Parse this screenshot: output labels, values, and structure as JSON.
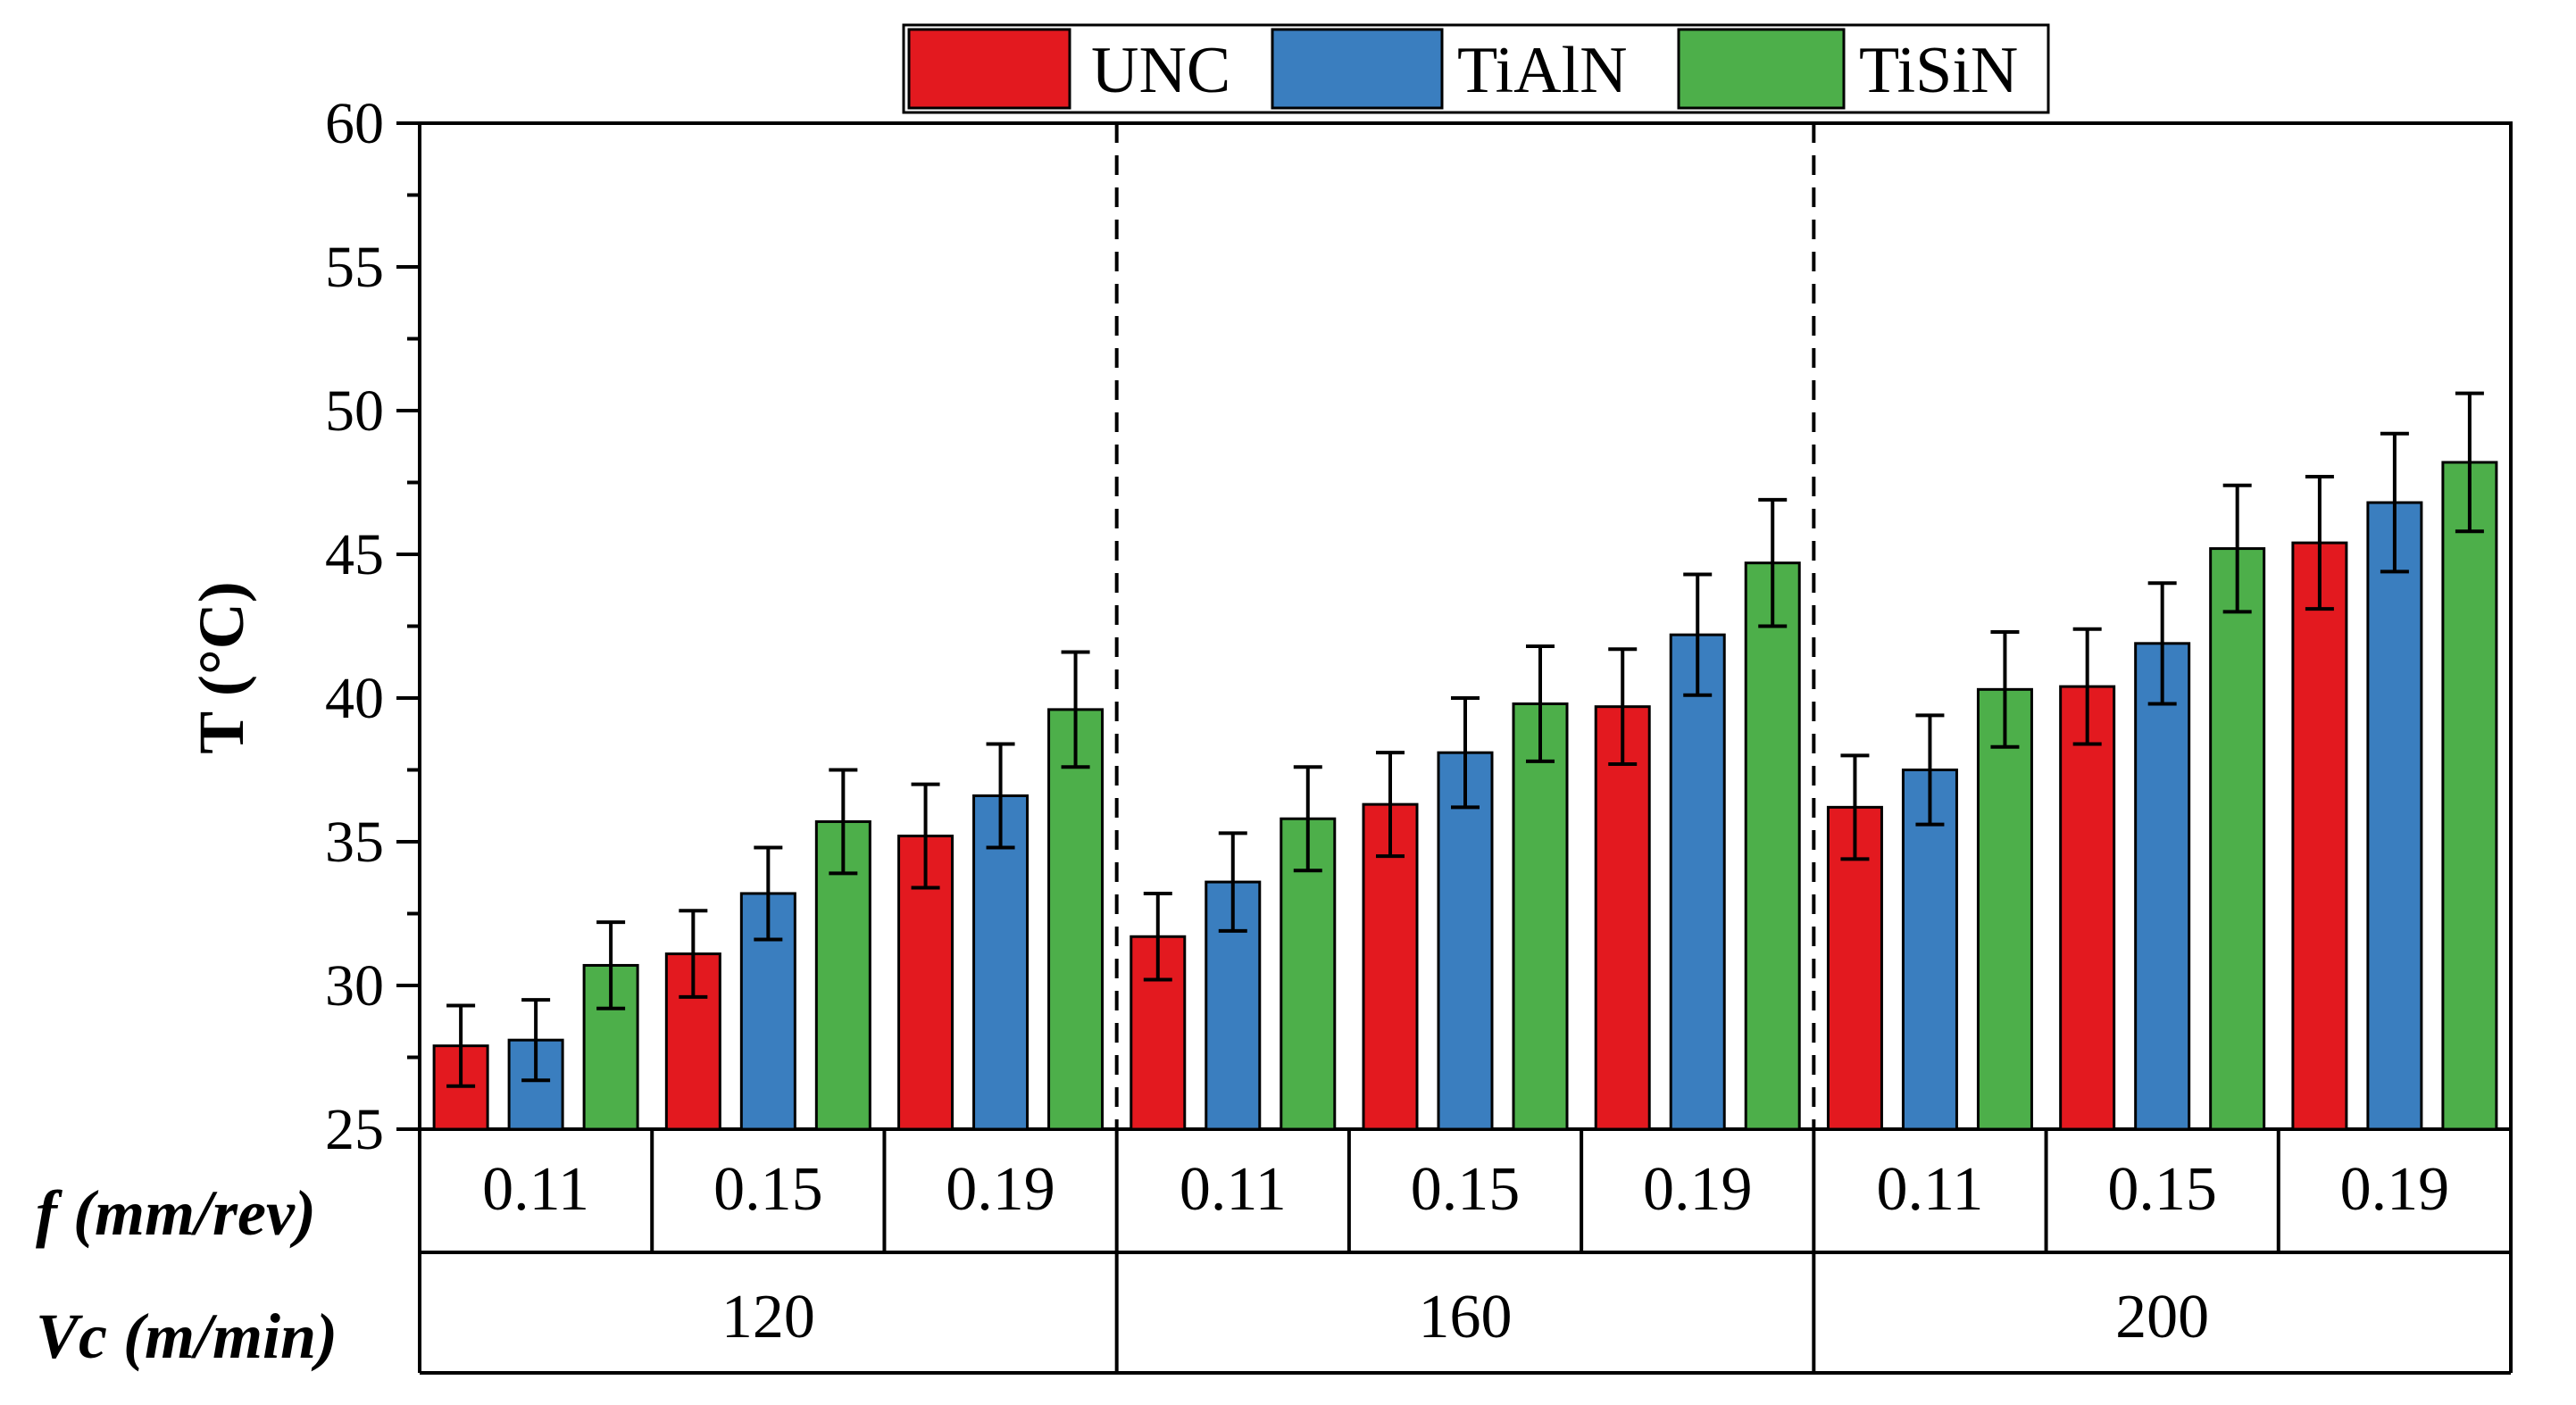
{
  "chart_data": {
    "type": "bar",
    "title": "",
    "ylabel": "T (°C)",
    "ylim": [
      25,
      60
    ],
    "yticks": [
      "25",
      "30",
      "35",
      "40",
      "45",
      "50",
      "55",
      "60"
    ],
    "legend_position": "top-center",
    "series": [
      {
        "name": "UNC",
        "color": "#e3191f"
      },
      {
        "name": "TiAlN",
        "color": "#3a7ebf"
      },
      {
        "name": "TiSiN",
        "color": "#4daf4a"
      }
    ],
    "row_titles": {
      "feed": "f (mm/rev)",
      "speed": "Vc (m/min)"
    },
    "groups": [
      {
        "vc": "120",
        "feeds": [
          {
            "f": "0.11",
            "values": [
              27.9,
              28.1,
              30.7
            ],
            "errors": [
              1.4,
              1.4,
              1.5
            ]
          },
          {
            "f": "0.15",
            "values": [
              31.1,
              33.2,
              35.7
            ],
            "errors": [
              1.5,
              1.6,
              1.8
            ]
          },
          {
            "f": "0.19",
            "values": [
              35.2,
              36.6,
              39.6
            ],
            "errors": [
              1.8,
              1.8,
              2.0
            ]
          }
        ]
      },
      {
        "vc": "160",
        "feeds": [
          {
            "f": "0.11",
            "values": [
              31.7,
              33.6,
              35.8
            ],
            "errors": [
              1.5,
              1.7,
              1.8
            ]
          },
          {
            "f": "0.15",
            "values": [
              36.3,
              38.1,
              39.8
            ],
            "errors": [
              1.8,
              1.9,
              2.0
            ]
          },
          {
            "f": "0.19",
            "values": [
              39.7,
              42.2,
              44.7
            ],
            "errors": [
              2.0,
              2.1,
              2.2
            ]
          }
        ]
      },
      {
        "vc": "200",
        "feeds": [
          {
            "f": "0.11",
            "values": [
              36.2,
              37.5,
              40.3
            ],
            "errors": [
              1.8,
              1.9,
              2.0
            ]
          },
          {
            "f": "0.15",
            "values": [
              40.4,
              41.9,
              45.2
            ],
            "errors": [
              2.0,
              2.1,
              2.2
            ]
          },
          {
            "f": "0.19",
            "values": [
              45.4,
              46.8,
              48.2
            ],
            "errors": [
              2.3,
              2.4,
              2.4
            ]
          }
        ]
      }
    ]
  }
}
